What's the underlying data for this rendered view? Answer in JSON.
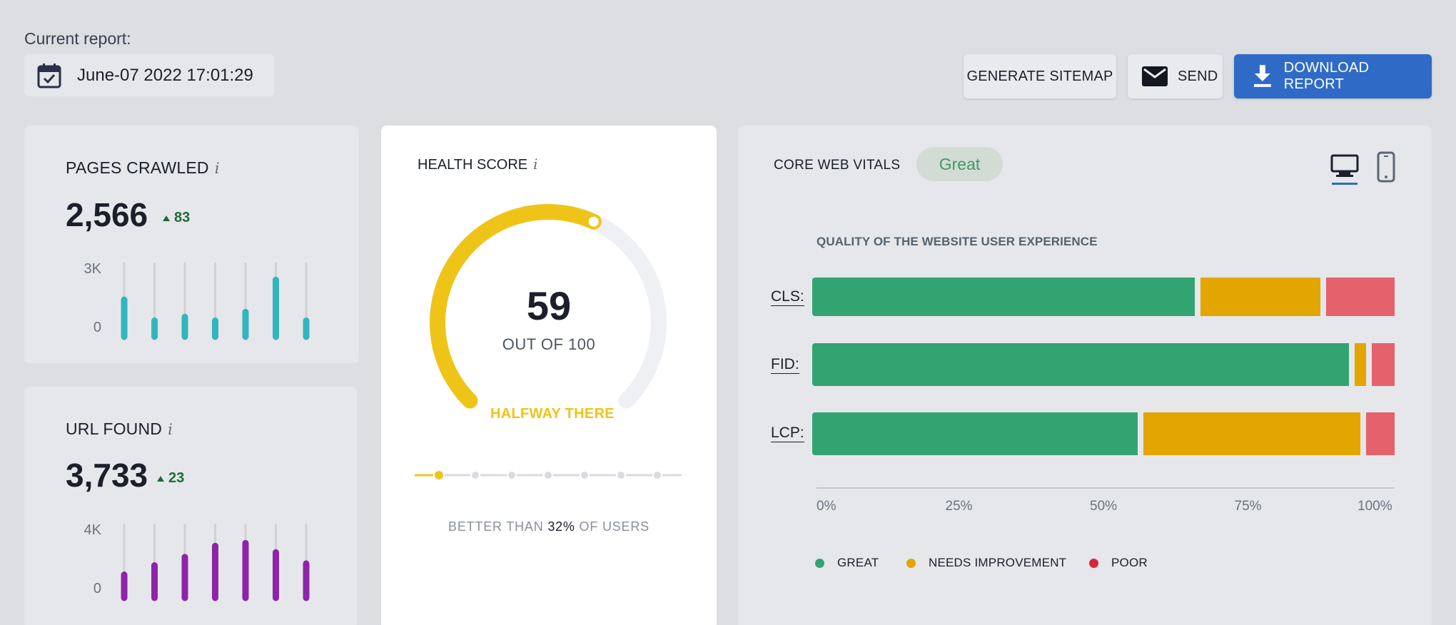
{
  "report": {
    "label": "Current report:",
    "date": "June-07 2022 17:01:29"
  },
  "buttons": {
    "sitemap": "GENERATE SITEMAP",
    "send": "SEND",
    "download": "DOWNLOAD REPORT"
  },
  "pages_crawled": {
    "title": "PAGES CRAWLED",
    "info": "i",
    "value": "2,566",
    "delta": "83",
    "ymax_label": "3K",
    "ymin_label": "0",
    "color": "#33b5bf",
    "chart_data": {
      "type": "bar",
      "ylim": [
        0,
        3000
      ],
      "values": [
        1500,
        650,
        800,
        650,
        1000,
        2300,
        650
      ]
    }
  },
  "url_found": {
    "title": "URL FOUND",
    "info": "i",
    "value": "3,733",
    "delta": "23",
    "ymax_label": "4K",
    "ymin_label": "0",
    "color": "#8e24aa",
    "chart_data": {
      "type": "bar",
      "ylim": [
        0,
        4000
      ],
      "values": [
        1250,
        1750,
        2200,
        2800,
        2950,
        2450,
        1850
      ]
    }
  },
  "health_score": {
    "title": "HEALTH SCORE",
    "info": "i",
    "score": "59",
    "out_of": "OUT OF 100",
    "status": "HALFWAY THERE",
    "better_prefix": "BETTER THAN ",
    "better_percent": "32%",
    "better_suffix": " OF USERS",
    "gauge_color": "#efc419",
    "track_color": "#eef0f4"
  },
  "core_web_vitals": {
    "title": "CORE WEB VITALS",
    "status": "Great",
    "subtitle": "QUALITY OF THE WEBSITE USER EXPERIENCE",
    "devices": [
      "desktop-icon",
      "mobile-icon"
    ],
    "colors": {
      "great": "#32a472",
      "needs": "#e3a500",
      "poor": "#e5616b"
    },
    "chart_data": {
      "type": "bar",
      "orientation": "horizontal",
      "stacked": true,
      "categories": [
        "CLS:",
        "FID:",
        "LCP:"
      ],
      "series": [
        {
          "name": "GREAT",
          "values": [
            67,
            94,
            57
          ]
        },
        {
          "name": "NEEDS IMPROVEMENT",
          "values": [
            21,
            2,
            38
          ]
        },
        {
          "name": "POOR",
          "values": [
            12,
            4,
            5
          ]
        }
      ],
      "xticks": [
        "0%",
        "25%",
        "50%",
        "75%",
        "100%"
      ],
      "xlim": [
        0,
        100
      ]
    },
    "legend": [
      "GREAT",
      "NEEDS IMPROVEMENT",
      "POOR"
    ]
  }
}
